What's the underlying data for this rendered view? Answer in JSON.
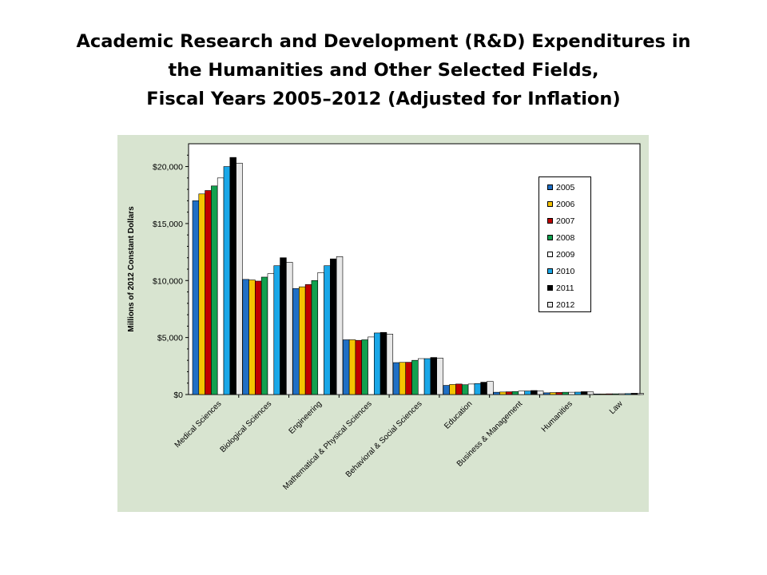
{
  "title": {
    "line1": "Academic Research and Development (R&D) Expenditures in",
    "line2": "the Humanities and Other Selected Fields,",
    "line3": "Fiscal Years 2005–2012 (Adjusted for Inflation)"
  },
  "colors": {
    "panel_background": "#d8e4d0",
    "plot_background": "#ffffff"
  },
  "chart_data": {
    "type": "bar",
    "title": "",
    "xlabel": "",
    "ylabel": "Millions of 2012 Constant Dollars",
    "ylim": [
      0,
      22000
    ],
    "yticks": [
      0,
      5000,
      10000,
      15000,
      20000
    ],
    "ytick_labels": [
      "$0",
      "$5,000",
      "$10,000",
      "$15,000",
      "$20,000"
    ],
    "grid": false,
    "legend_position": "top-right",
    "categories": [
      "Medical Sciences",
      "Biological Sciences",
      "Engineering",
      "Mathematical & Physical Sciences",
      "Behavioral & Social Sciences",
      "Education",
      "Business & Management",
      "Humanities",
      "Law"
    ],
    "series": [
      {
        "name": "2005",
        "color": "#1f6fc5",
        "values": [
          17000,
          10100,
          9300,
          4800,
          2800,
          800,
          200,
          150,
          50
        ]
      },
      {
        "name": "2006",
        "color": "#f5c400",
        "values": [
          17600,
          10050,
          9450,
          4800,
          2820,
          880,
          220,
          170,
          50
        ]
      },
      {
        "name": "2007",
        "color": "#c00000",
        "values": [
          17900,
          9950,
          9650,
          4750,
          2830,
          920,
          240,
          180,
          60
        ]
      },
      {
        "name": "2008",
        "color": "#12a14f",
        "values": [
          18300,
          10300,
          10000,
          4800,
          3000,
          860,
          260,
          200,
          60
        ]
      },
      {
        "name": "2009",
        "color": "#ffffff",
        "values": [
          19000,
          10600,
          10700,
          5050,
          3150,
          920,
          300,
          200,
          70
        ]
      },
      {
        "name": "2010",
        "color": "#1aa7e8",
        "values": [
          20000,
          11300,
          11300,
          5400,
          3150,
          960,
          310,
          210,
          80
        ]
      },
      {
        "name": "2011",
        "color": "#000000",
        "values": [
          20800,
          12000,
          11900,
          5450,
          3250,
          1080,
          350,
          250,
          110
        ]
      },
      {
        "name": "2012",
        "color": "#e8e8e8",
        "values": [
          20300,
          11600,
          12100,
          5300,
          3200,
          1150,
          310,
          230,
          90
        ]
      }
    ]
  }
}
